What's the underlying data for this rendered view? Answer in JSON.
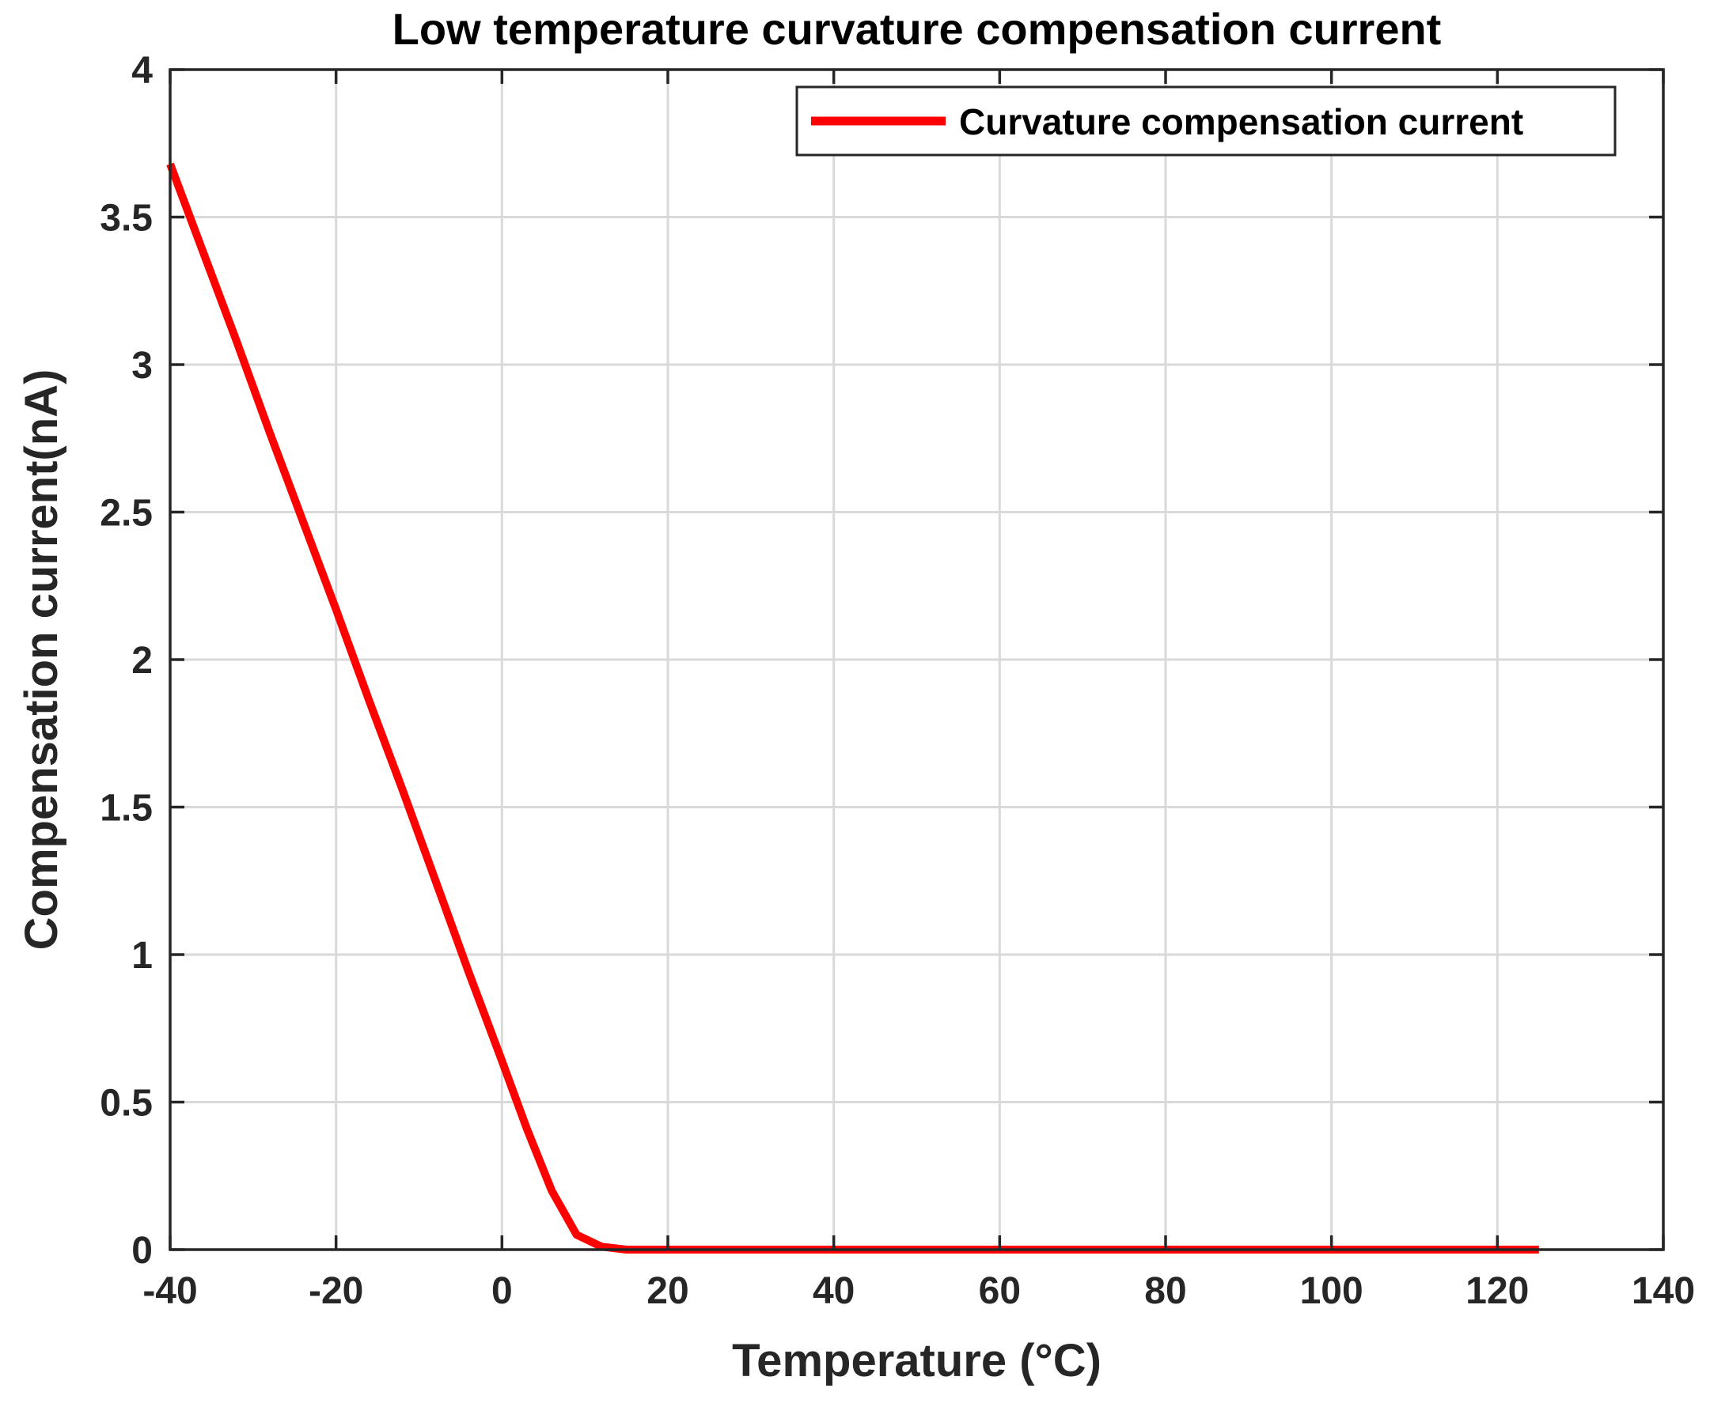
{
  "chart_data": {
    "type": "line",
    "title": "Low temperature curvature compensation current",
    "xlabel": "Temperature (°C)",
    "ylabel": "Compensation current(nA)",
    "xlim": [
      -40,
      140
    ],
    "ylim": [
      0,
      4
    ],
    "xticks": [
      -40,
      -20,
      0,
      20,
      40,
      60,
      80,
      100,
      120,
      140
    ],
    "yticks": [
      0,
      0.5,
      1,
      1.5,
      2,
      2.5,
      3,
      3.5,
      4
    ],
    "xtick_labels": [
      "-40",
      "-20",
      "0",
      "20",
      "40",
      "60",
      "80",
      "100",
      "120",
      "140"
    ],
    "ytick_labels": [
      "0",
      "0.5",
      "1",
      "1.5",
      "2",
      "2.5",
      "3",
      "3.5",
      "4"
    ],
    "grid": true,
    "legend_position": "top-right",
    "series": [
      {
        "name": "Curvature compensation current",
        "color": "#ff0000",
        "x": [
          -40,
          -36,
          -32,
          -28,
          -24,
          -20,
          -16,
          -12,
          -8,
          -4,
          0,
          3,
          6,
          9,
          12,
          15,
          20,
          40,
          60,
          80,
          100,
          120,
          125
        ],
        "y": [
          3.68,
          3.38,
          3.08,
          2.77,
          2.47,
          2.17,
          1.86,
          1.56,
          1.25,
          0.94,
          0.64,
          0.41,
          0.2,
          0.05,
          0.01,
          0.0,
          0.0,
          0.0,
          0.0,
          0.0,
          0.0,
          0.0,
          0.0
        ]
      }
    ]
  }
}
